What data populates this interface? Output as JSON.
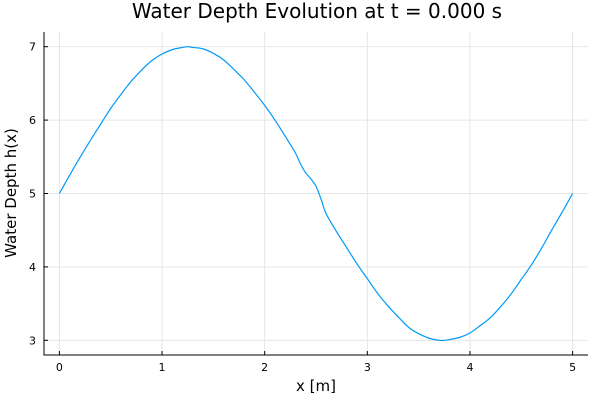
{
  "chart_data": {
    "type": "line",
    "title": "Water Depth Evolution at t = 0.000 s",
    "xlabel": "x [m]",
    "ylabel": "Water Depth h(x)",
    "xlim": [
      -0.15,
      5.15
    ],
    "ylim": [
      2.8,
      7.2
    ],
    "x_ticks": [
      0,
      1,
      2,
      3,
      4,
      5
    ],
    "y_ticks": [
      3,
      4,
      5,
      6,
      7
    ],
    "grid": true,
    "legend": "none",
    "series": [
      {
        "color": "#009AFA",
        "x": [
          0.0,
          0.1,
          0.2,
          0.3,
          0.4,
          0.5,
          0.6,
          0.7,
          0.8,
          0.9,
          1.0,
          1.1,
          1.2,
          1.25,
          1.3,
          1.4,
          1.5,
          1.6,
          1.7,
          1.8,
          1.9,
          2.0,
          2.1,
          2.2,
          2.3,
          2.35,
          2.4,
          2.45,
          2.5,
          2.55,
          2.6,
          2.7,
          2.8,
          2.9,
          3.0,
          3.1,
          3.2,
          3.3,
          3.4,
          3.5,
          3.6,
          3.7,
          3.75,
          3.8,
          3.9,
          4.0,
          4.1,
          4.2,
          4.3,
          4.4,
          4.5,
          4.6,
          4.7,
          4.8,
          4.9,
          5.0
        ],
        "y": [
          5.0,
          5.25,
          5.49,
          5.72,
          5.94,
          6.16,
          6.35,
          6.53,
          6.68,
          6.81,
          6.9,
          6.96,
          6.99,
          7.0,
          6.99,
          6.97,
          6.91,
          6.82,
          6.69,
          6.55,
          6.38,
          6.2,
          6.0,
          5.78,
          5.55,
          5.4,
          5.28,
          5.2,
          5.1,
          4.92,
          4.72,
          4.48,
          4.26,
          4.04,
          3.84,
          3.64,
          3.47,
          3.32,
          3.18,
          3.09,
          3.03,
          3.0,
          3.0,
          3.01,
          3.04,
          3.1,
          3.2,
          3.31,
          3.46,
          3.63,
          3.83,
          4.03,
          4.26,
          4.51,
          4.75,
          5.0
        ]
      }
    ]
  }
}
